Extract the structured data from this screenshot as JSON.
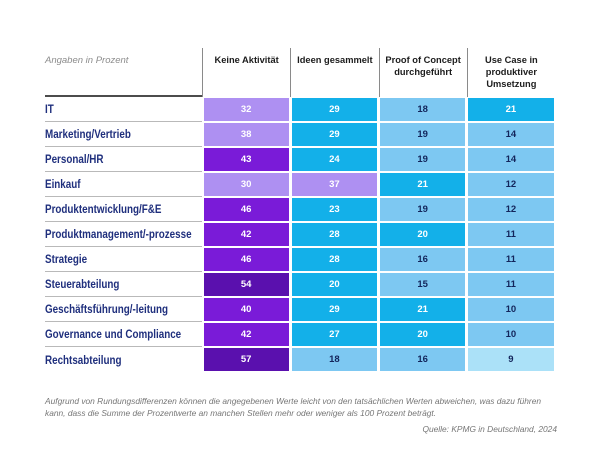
{
  "chart_data": {
    "type": "heatmap",
    "unit_note": "Angaben in Prozent",
    "columns": [
      "Keine Aktivität",
      "Ideen gesammelt",
      "Proof of Concept durchgeführt",
      "Use Case in produktiver Umsetzung"
    ],
    "rows": [
      {
        "label": "IT",
        "values": [
          32,
          29,
          18,
          21
        ]
      },
      {
        "label": "Marketing/Vertrieb",
        "values": [
          38,
          29,
          19,
          14
        ]
      },
      {
        "label": "Personal/HR",
        "values": [
          43,
          24,
          19,
          14
        ]
      },
      {
        "label": "Einkauf",
        "values": [
          30,
          37,
          21,
          12
        ]
      },
      {
        "label": "Produktentwicklung/F&E",
        "values": [
          46,
          23,
          19,
          12
        ]
      },
      {
        "label": "Produktmanagement/-prozesse",
        "values": [
          42,
          28,
          20,
          11
        ]
      },
      {
        "label": "Strategie",
        "values": [
          46,
          28,
          16,
          11
        ]
      },
      {
        "label": "Steuerabteilung",
        "values": [
          54,
          20,
          15,
          11
        ]
      },
      {
        "label": "Geschäftsführung/-leitung",
        "values": [
          40,
          29,
          21,
          10
        ]
      },
      {
        "label": "Governance und Compliance",
        "values": [
          42,
          27,
          20,
          10
        ]
      },
      {
        "label": "Rechtsabteilung",
        "values": [
          57,
          18,
          16,
          9
        ]
      }
    ],
    "color_scale": [
      {
        "min": 50,
        "bg": "#5a10ae",
        "fg": "#ffffff"
      },
      {
        "min": 40,
        "bg": "#7a1bd8",
        "fg": "#ffffff"
      },
      {
        "min": 30,
        "bg": "#ae90f2",
        "fg": "#ffffff"
      },
      {
        "min": 20,
        "bg": "#13b0e9",
        "fg": "#ffffff"
      },
      {
        "min": 10,
        "bg": "#7dc8f2",
        "fg": "#13255b"
      },
      {
        "min": 0,
        "bg": "#abe1f8",
        "fg": "#13255b"
      }
    ],
    "label_color": "#1f2f7d",
    "footnote": "Aufgrund von Rundungsdifferenzen können die angegebenen Werte leicht von den tatsächlichen Werten abweichen, was dazu führen kann, dass die Summe der Prozentwerte an manchen Stellen mehr oder weniger als 100 Prozent beträgt.",
    "source": "Quelle: KPMG in Deutschland, 2024"
  }
}
